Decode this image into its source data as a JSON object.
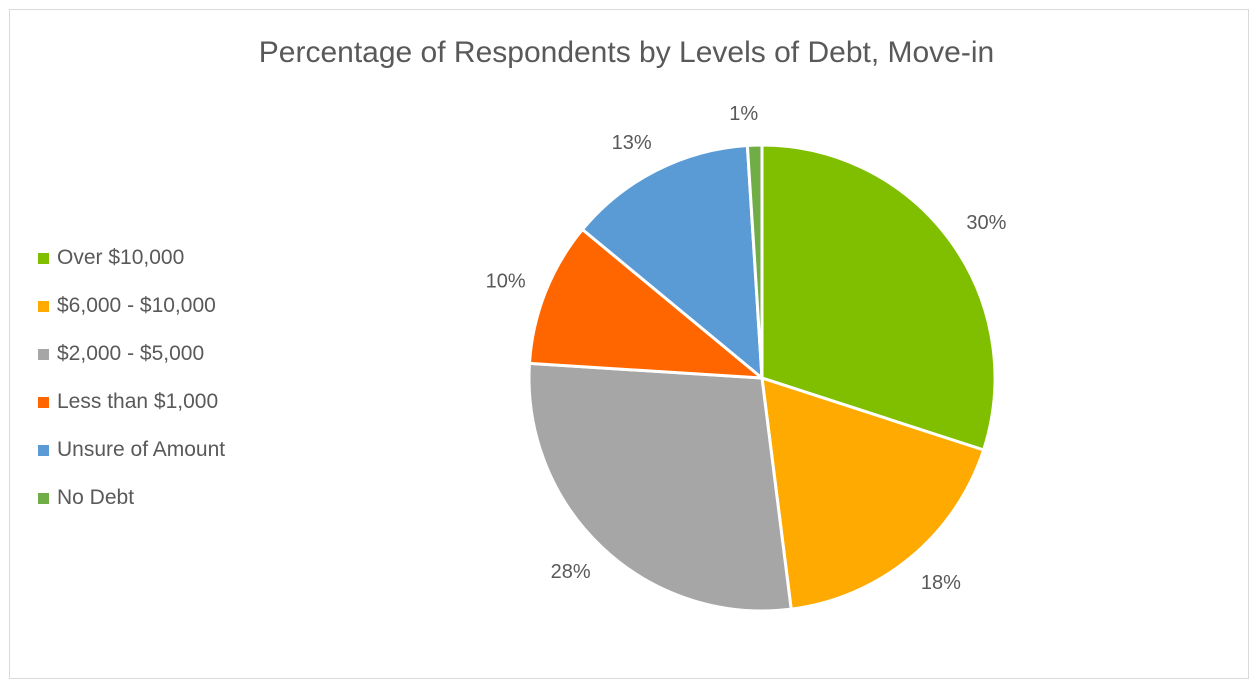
{
  "chart_data": {
    "type": "pie",
    "title": "Percentage of Respondents by Levels of Debt, Move-in",
    "legend_position": "left",
    "slices": [
      {
        "label": "Over $10,000",
        "value": 30,
        "value_label": "30%",
        "color": "#7fbf00"
      },
      {
        "label": "$6,000 - $10,000",
        "value": 18,
        "value_label": "18%",
        "color": "#ffaa00"
      },
      {
        "label": "$2,000 - $5,000",
        "value": 28,
        "value_label": "28%",
        "color": "#a6a6a6"
      },
      {
        "label": "Less than $1,000",
        "value": 10,
        "value_label": "10%",
        "color": "#ff6600"
      },
      {
        "label": "Unsure of Amount",
        "value": 13,
        "value_label": "13%",
        "color": "#5b9bd5"
      },
      {
        "label": "No Debt",
        "value": 1,
        "value_label": "1%",
        "color": "#70ad47"
      }
    ]
  }
}
